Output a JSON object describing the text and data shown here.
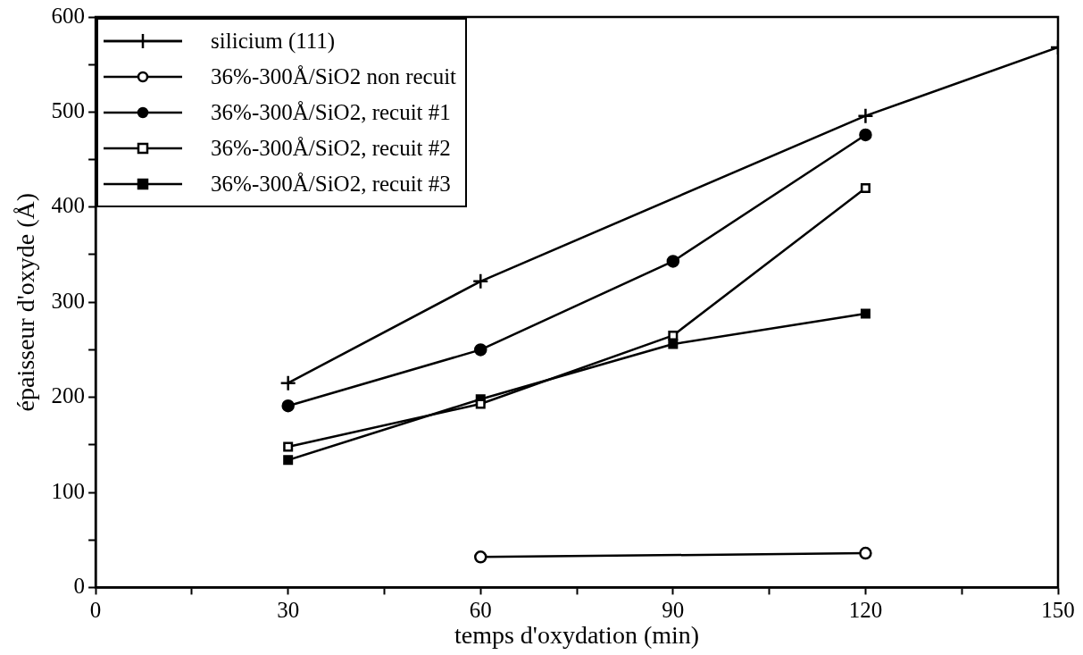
{
  "chart_data": {
    "type": "line",
    "xlabel": "temps d'oxydation (min)",
    "ylabel": "épaisseur d'oxyde (Å)",
    "xlim": [
      0,
      150
    ],
    "xticks": [
      0,
      {
        "value": 15,
        "label": null
      },
      30,
      {
        "value": 45,
        "label": null
      },
      60,
      {
        "value": 75,
        "label": null
      },
      90,
      {
        "value": 105,
        "label": null
      },
      120,
      {
        "value": 135,
        "label": null
      },
      150
    ],
    "ylim": [
      0,
      600
    ],
    "yticks": [
      0,
      {
        "value": 50,
        "label": null
      },
      100,
      {
        "value": 150,
        "label": null
      },
      200,
      {
        "value": 250,
        "label": null
      },
      300,
      {
        "value": 350,
        "label": null
      },
      400,
      {
        "value": 450,
        "label": null
      },
      500,
      {
        "value": 550,
        "label": null
      },
      600
    ],
    "grid": false,
    "legend": "top left",
    "line_style": "solid",
    "series": [
      {
        "name": "silicium (111)",
        "color": "#000000",
        "marker": "cross",
        "x": [
          30,
          60,
          120,
          150
        ],
        "values": [
          215,
          322,
          496,
          568
        ]
      },
      {
        "name": "36%-300Å/SiO2 non recuit",
        "color": "#000000",
        "colors": [
          "#ffffff",
          "#ffffff"
        ],
        "marker": "circle",
        "x": [
          60,
          120
        ],
        "values": [
          32,
          36
        ]
      },
      {
        "name": "36%-300Å/SiO2, recuit #1",
        "color": "#000000",
        "marker": "circle",
        "x": [
          30,
          60,
          90,
          120
        ],
        "values": [
          191,
          250,
          343,
          476
        ]
      },
      {
        "name": "36%-300Å/SiO2, recuit #2",
        "color": "#000000",
        "colors": [
          "#ffffff",
          "#ffffff",
          "#ffffff",
          "#ffffff"
        ],
        "marker": "square",
        "x": [
          30,
          60,
          90,
          120
        ],
        "values": [
          148,
          193,
          265,
          420
        ]
      },
      {
        "name": "36%-300Å/SiO2, recuit #3",
        "color": "#000000",
        "marker": "square",
        "x": [
          30,
          60,
          90,
          120
        ],
        "values": [
          134,
          198,
          256,
          288
        ]
      }
    ]
  }
}
